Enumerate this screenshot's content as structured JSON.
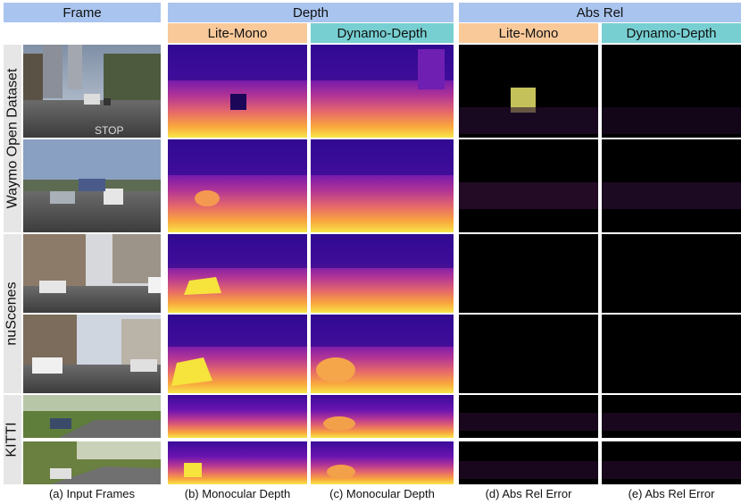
{
  "headers": {
    "frame": "Frame",
    "depth": "Depth",
    "absrel": "Abs Rel",
    "litemono_depth": "Lite-Mono",
    "dynamo_depth": "Dynamo-Depth",
    "litemono_err": "Lite-Mono",
    "dynamo_err": "Dynamo-Depth"
  },
  "row_labels": {
    "waymo": "Waymo Open Dataset",
    "nuscenes": "nuScenes",
    "kitti": "KITTI"
  },
  "captions": {
    "a": "(a) Input Frames",
    "b": "(b) Monocular Depth",
    "c": "(c) Monocular Depth",
    "d": "(d) Abs Rel Error",
    "e": "(e) Abs Rel Error"
  },
  "colors": {
    "header_blue": "#a9c4ef",
    "header_orange": "#f9c99a",
    "header_teal": "#77cfd2"
  }
}
